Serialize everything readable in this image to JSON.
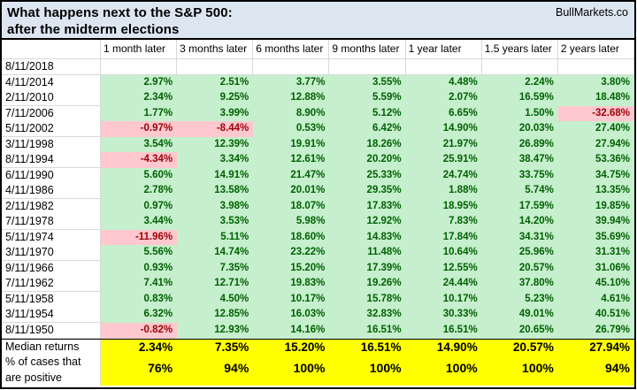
{
  "title": {
    "line1": "What happens next to the S&P 500:",
    "line2": "after the midterm elections",
    "brand": "BullMarkets.co"
  },
  "colors": {
    "positive_bg": "#c6efce",
    "positive_text": "#006100",
    "negative_bg": "#ffc7ce",
    "negative_text": "#9c0006",
    "summary_bg": "#ffff00",
    "title_bg": "#dce6f1"
  },
  "chart_data": {
    "type": "table",
    "title": "What happens next to the S&P 500: after the midterm elections",
    "columns": [
      "1 month later",
      "3 months later",
      "6 months later",
      "9 months later",
      "1 year later",
      "1.5 years later",
      "2 years later"
    ],
    "rows": [
      {
        "date": "8/11/2018",
        "values": [
          "",
          "",
          "",
          "",
          "",
          "",
          ""
        ]
      },
      {
        "date": "4/11/2014",
        "values": [
          "2.97%",
          "2.51%",
          "3.77%",
          "3.55%",
          "4.48%",
          "2.24%",
          "3.80%"
        ]
      },
      {
        "date": "2/11/2010",
        "values": [
          "2.34%",
          "9.25%",
          "12.88%",
          "5.59%",
          "2.07%",
          "16.59%",
          "18.48%"
        ]
      },
      {
        "date": "7/11/2006",
        "values": [
          "1.77%",
          "3.99%",
          "8.90%",
          "5.12%",
          "6.65%",
          "1.50%",
          "-32.68%"
        ]
      },
      {
        "date": "5/11/2002",
        "values": [
          "-0.97%",
          "-8.44%",
          "0.53%",
          "6.42%",
          "14.90%",
          "20.03%",
          "27.40%"
        ]
      },
      {
        "date": "3/11/1998",
        "values": [
          "3.54%",
          "12.39%",
          "19.91%",
          "18.26%",
          "21.97%",
          "26.89%",
          "27.94%"
        ]
      },
      {
        "date": "8/11/1994",
        "values": [
          "-4.34%",
          "3.34%",
          "12.61%",
          "20.20%",
          "25.91%",
          "38.47%",
          "53.36%"
        ]
      },
      {
        "date": "6/11/1990",
        "values": [
          "5.60%",
          "14.91%",
          "21.47%",
          "25.33%",
          "24.74%",
          "33.75%",
          "34.75%"
        ]
      },
      {
        "date": "4/11/1986",
        "values": [
          "2.78%",
          "13.58%",
          "20.01%",
          "29.35%",
          "1.88%",
          "5.74%",
          "13.35%"
        ]
      },
      {
        "date": "2/11/1982",
        "values": [
          "0.97%",
          "3.98%",
          "18.07%",
          "17.83%",
          "18.95%",
          "17.59%",
          "19.85%"
        ]
      },
      {
        "date": "7/11/1978",
        "values": [
          "3.44%",
          "3.53%",
          "5.98%",
          "12.92%",
          "7.83%",
          "14.20%",
          "39.94%"
        ]
      },
      {
        "date": "5/11/1974",
        "values": [
          "-11.96%",
          "5.11%",
          "18.60%",
          "14.83%",
          "17.84%",
          "34.31%",
          "35.69%"
        ]
      },
      {
        "date": "3/11/1970",
        "values": [
          "5.56%",
          "14.74%",
          "23.22%",
          "11.48%",
          "10.64%",
          "25.96%",
          "31.31%"
        ]
      },
      {
        "date": "9/11/1966",
        "values": [
          "0.93%",
          "7.35%",
          "15.20%",
          "17.39%",
          "12.55%",
          "20.57%",
          "31.06%"
        ]
      },
      {
        "date": "7/11/1962",
        "values": [
          "7.41%",
          "12.71%",
          "19.83%",
          "19.26%",
          "24.44%",
          "37.80%",
          "45.10%"
        ]
      },
      {
        "date": "5/11/1958",
        "values": [
          "0.83%",
          "4.50%",
          "10.17%",
          "15.78%",
          "10.17%",
          "5.23%",
          "4.61%"
        ]
      },
      {
        "date": "3/11/1954",
        "values": [
          "6.32%",
          "12.85%",
          "16.03%",
          "32.83%",
          "30.33%",
          "49.01%",
          "40.51%"
        ]
      },
      {
        "date": "8/11/1950",
        "values": [
          "-0.82%",
          "12.93%",
          "14.16%",
          "16.51%",
          "16.51%",
          "20.65%",
          "26.79%"
        ]
      }
    ],
    "summary": {
      "median_label": "Median returns",
      "median_values": [
        "2.34%",
        "7.35%",
        "15.20%",
        "16.51%",
        "14.90%",
        "20.57%",
        "27.94%"
      ],
      "pct_label_line1": "% of cases that",
      "pct_label_line2": "are positive",
      "pct_values": [
        "76%",
        "94%",
        "100%",
        "100%",
        "100%",
        "100%",
        "94%"
      ]
    }
  }
}
